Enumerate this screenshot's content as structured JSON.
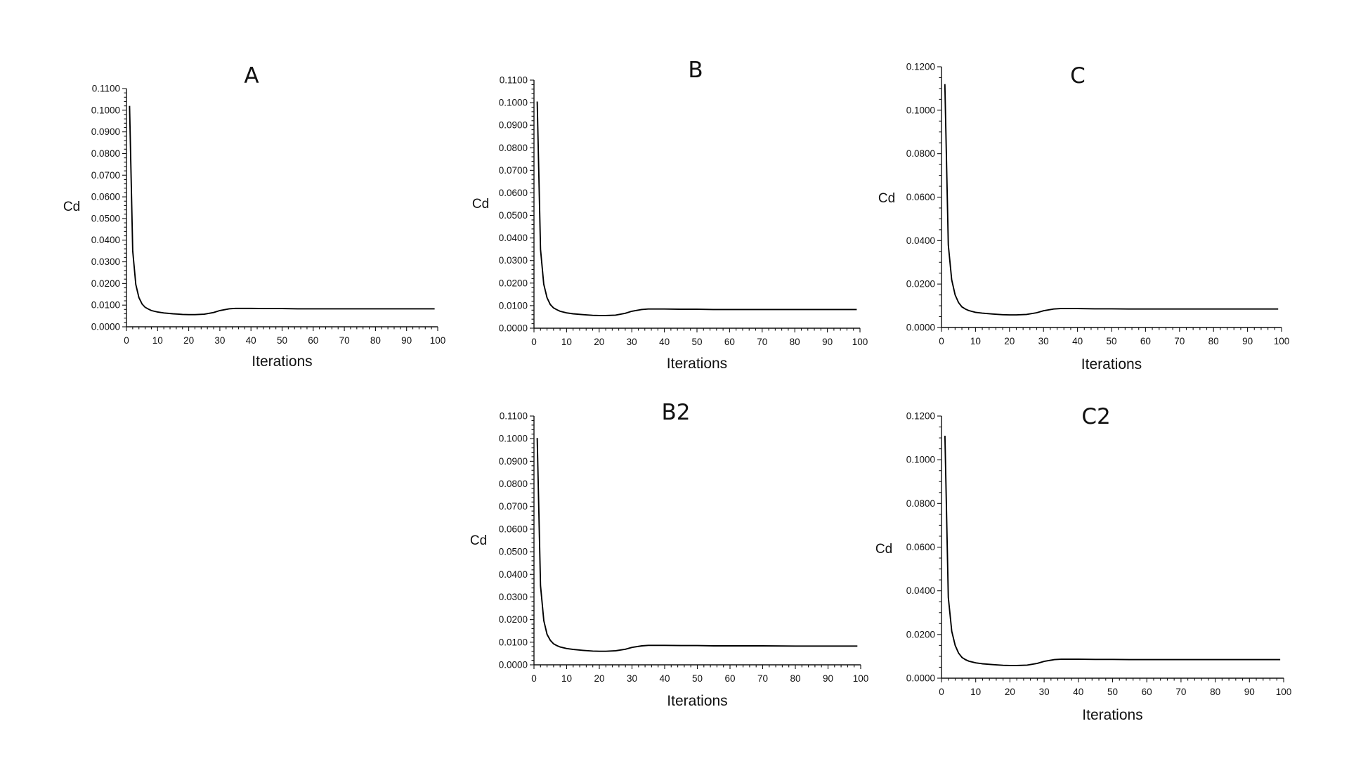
{
  "chart_data": [
    {
      "type": "line",
      "title": "A",
      "xlabel": "Iterations",
      "ylabel": "Cd",
      "xlim": [
        0,
        100
      ],
      "ylim": [
        0,
        0.11
      ],
      "xticks": [
        "0",
        "10",
        "20",
        "30",
        "40",
        "50",
        "60",
        "70",
        "80",
        "90",
        "100"
      ],
      "yticks": [
        "0.0000",
        "0.0100",
        "0.0200",
        "0.0300",
        "0.0400",
        "0.0500",
        "0.0600",
        "0.0700",
        "0.0800",
        "0.0900",
        "0.1000",
        "0.1100"
      ],
      "x": [
        1,
        2,
        3,
        4,
        5,
        6,
        7,
        8,
        10,
        12,
        15,
        18,
        20,
        22,
        25,
        28,
        30,
        33,
        35,
        40,
        45,
        50,
        55,
        60,
        70,
        80,
        90,
        99
      ],
      "y": [
        0.102,
        0.035,
        0.0195,
        0.0135,
        0.0105,
        0.009,
        0.0082,
        0.0075,
        0.0068,
        0.0064,
        0.006,
        0.0057,
        0.0056,
        0.0056,
        0.0058,
        0.0066,
        0.0075,
        0.0083,
        0.0085,
        0.0085,
        0.0084,
        0.0084,
        0.0083,
        0.0083,
        0.0083,
        0.0083,
        0.0083,
        0.0083
      ]
    },
    {
      "type": "line",
      "title": "B",
      "xlabel": "Iterations",
      "ylabel": "Cd",
      "xlim": [
        0,
        100
      ],
      "ylim": [
        0,
        0.11
      ],
      "xticks": [
        "0",
        "10",
        "20",
        "30",
        "40",
        "50",
        "60",
        "70",
        "80",
        "90",
        "100"
      ],
      "yticks": [
        "0.0000",
        "0.0100",
        "0.0200",
        "0.0300",
        "0.0400",
        "0.0500",
        "0.0600",
        "0.0700",
        "0.0800",
        "0.0900",
        "0.1000",
        "0.1100"
      ],
      "x": [
        1,
        2,
        3,
        4,
        5,
        6,
        7,
        8,
        10,
        12,
        15,
        18,
        20,
        22,
        25,
        28,
        30,
        33,
        35,
        40,
        45,
        50,
        55,
        60,
        70,
        80,
        90,
        99
      ],
      "y": [
        0.1005,
        0.035,
        0.0195,
        0.0135,
        0.0105,
        0.009,
        0.0082,
        0.0075,
        0.0068,
        0.0064,
        0.006,
        0.0057,
        0.0056,
        0.0056,
        0.0058,
        0.0066,
        0.0075,
        0.0083,
        0.0085,
        0.0085,
        0.0084,
        0.0084,
        0.0083,
        0.0083,
        0.0083,
        0.0083,
        0.0083,
        0.0083
      ]
    },
    {
      "type": "line",
      "title": "C",
      "xlabel": "Iterations",
      "ylabel": "Cd",
      "xlim": [
        0,
        100
      ],
      "ylim": [
        0,
        0.12
      ],
      "xticks": [
        "0",
        "10",
        "20",
        "30",
        "40",
        "50",
        "60",
        "70",
        "80",
        "90",
        "100"
      ],
      "yticks": [
        "0.0000",
        "0.0200",
        "0.0400",
        "0.0600",
        "0.0800",
        "0.1000",
        "0.1200"
      ],
      "x": [
        1,
        2,
        3,
        4,
        5,
        6,
        7,
        8,
        10,
        12,
        15,
        18,
        20,
        22,
        25,
        28,
        30,
        33,
        35,
        40,
        45,
        50,
        55,
        60,
        70,
        80,
        90,
        99
      ],
      "y": [
        0.112,
        0.038,
        0.022,
        0.015,
        0.0115,
        0.0095,
        0.0085,
        0.0078,
        0.007,
        0.0066,
        0.0062,
        0.0059,
        0.0058,
        0.0058,
        0.006,
        0.0068,
        0.0077,
        0.0085,
        0.0087,
        0.0087,
        0.0086,
        0.0086,
        0.0085,
        0.0085,
        0.0085,
        0.0085,
        0.0085,
        0.0085
      ]
    },
    {
      "type": "line",
      "title": "B2",
      "xlabel": "Iterations",
      "ylabel": "Cd",
      "xlim": [
        0,
        100
      ],
      "ylim": [
        0,
        0.11
      ],
      "xticks": [
        "0",
        "10",
        "20",
        "30",
        "40",
        "50",
        "60",
        "70",
        "80",
        "90",
        "100"
      ],
      "yticks": [
        "0.0000",
        "0.0100",
        "0.0200",
        "0.0300",
        "0.0400",
        "0.0500",
        "0.0600",
        "0.0700",
        "0.0800",
        "0.0900",
        "0.1000",
        "0.1100"
      ],
      "x": [
        1,
        2,
        3,
        4,
        5,
        6,
        7,
        8,
        10,
        12,
        15,
        18,
        20,
        22,
        25,
        28,
        30,
        33,
        35,
        40,
        45,
        50,
        55,
        60,
        70,
        80,
        90,
        99
      ],
      "y": [
        0.1003,
        0.035,
        0.0195,
        0.0135,
        0.0108,
        0.0093,
        0.0085,
        0.0079,
        0.0072,
        0.0068,
        0.0064,
        0.0061,
        0.006,
        0.006,
        0.0062,
        0.0069,
        0.0077,
        0.0084,
        0.0086,
        0.0086,
        0.0085,
        0.0085,
        0.0084,
        0.0084,
        0.0084,
        0.0083,
        0.0083,
        0.0083
      ]
    },
    {
      "type": "line",
      "title": "C2",
      "xlabel": "Iterations",
      "ylabel": "Cd",
      "xlim": [
        0,
        100
      ],
      "ylim": [
        0,
        0.12
      ],
      "xticks": [
        "0",
        "10",
        "20",
        "30",
        "40",
        "50",
        "60",
        "70",
        "80",
        "90",
        "100"
      ],
      "yticks": [
        "0.0000",
        "0.0200",
        "0.0400",
        "0.0600",
        "0.0800",
        "0.1000",
        "0.1200"
      ],
      "x": [
        1,
        2,
        3,
        4,
        5,
        6,
        7,
        8,
        10,
        12,
        15,
        18,
        20,
        22,
        25,
        28,
        30,
        33,
        35,
        40,
        45,
        50,
        55,
        60,
        70,
        80,
        90,
        99
      ],
      "y": [
        0.111,
        0.037,
        0.0215,
        0.015,
        0.0115,
        0.0095,
        0.0085,
        0.0078,
        0.007,
        0.0066,
        0.0062,
        0.0059,
        0.0058,
        0.0058,
        0.006,
        0.0068,
        0.0077,
        0.0085,
        0.0087,
        0.0087,
        0.0086,
        0.0086,
        0.0085,
        0.0085,
        0.0085,
        0.0085,
        0.0085,
        0.0085
      ]
    }
  ]
}
